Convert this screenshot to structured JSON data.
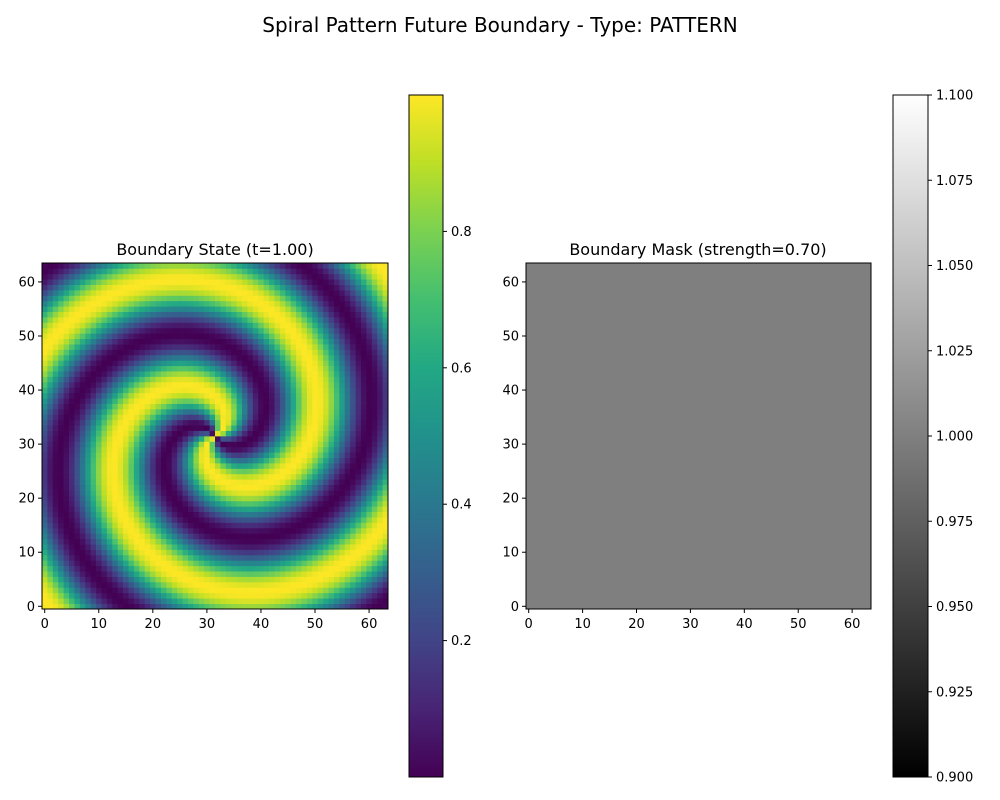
{
  "figure": {
    "title": "Spiral Pattern Future Boundary - Type: PATTERN"
  },
  "chart_data": [
    {
      "type": "heatmap",
      "title": "Boundary State (t=1.00)",
      "xlabel": "",
      "ylabel": "",
      "grid_size": [
        64,
        64
      ],
      "xlim": [
        -0.5,
        63.5
      ],
      "ylim": [
        -0.5,
        63.5
      ],
      "x_ticks": [
        0,
        10,
        20,
        30,
        40,
        50,
        60
      ],
      "y_ticks": [
        0,
        10,
        20,
        30,
        40,
        50,
        60
      ],
      "origin": "lower",
      "colormap": "viridis",
      "pattern": "two-armed spiral centred near (32, 32)",
      "value_range": [
        0.0,
        1.0
      ],
      "colorbar": {
        "range": [
          0.0,
          1.0
        ],
        "ticks": [
          0.2,
          0.4,
          0.6,
          0.8
        ],
        "tick_labels": [
          "0.2",
          "0.4",
          "0.6",
          "0.8"
        ]
      },
      "grid": false
    },
    {
      "type": "heatmap",
      "title": "Boundary Mask (strength=0.70)",
      "xlabel": "",
      "ylabel": "",
      "grid_size": [
        64,
        64
      ],
      "xlim": [
        -0.5,
        63.5
      ],
      "ylim": [
        -0.5,
        63.5
      ],
      "x_ticks": [
        0,
        10,
        20,
        30,
        40,
        50,
        60
      ],
      "y_ticks": [
        0,
        10,
        20,
        30,
        40,
        50,
        60
      ],
      "origin": "lower",
      "colormap": "gray",
      "uniform_value": 1.0,
      "colorbar": {
        "range": [
          0.9,
          1.1
        ],
        "ticks": [
          0.9,
          0.925,
          0.95,
          0.975,
          1.0,
          1.025,
          1.05,
          1.075,
          1.1
        ],
        "tick_labels": [
          "0.900",
          "0.925",
          "0.950",
          "0.975",
          "1.000",
          "1.025",
          "1.050",
          "1.075",
          "1.100"
        ]
      },
      "grid": false
    }
  ]
}
